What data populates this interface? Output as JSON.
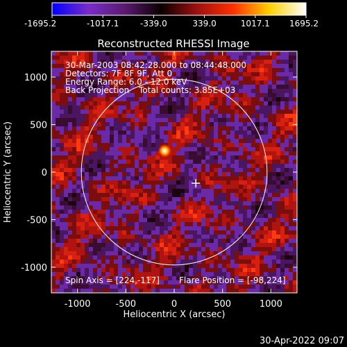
{
  "chart_data": {
    "type": "heatmap",
    "title": "Reconstructed RHESSI Image",
    "xlabel": "Heliocentric X (arcsec)",
    "ylabel": "Heliocentric Y (arcsec)",
    "xlim": [
      -1270,
      1270
    ],
    "ylim": [
      -1270,
      1270
    ],
    "xticks": [
      -1000,
      -500,
      0,
      500,
      1000
    ],
    "yticks": [
      1000,
      500,
      0,
      -500,
      -1000
    ],
    "colorbar": {
      "range": [
        -1695.2,
        1695.2
      ],
      "ticks": [
        "-1695.2",
        "-1017.1",
        "-339.0",
        "339.0",
        "1017.1",
        "1695.2"
      ],
      "colors": [
        "#0000ff",
        "#7a2cc9",
        "#5a1a70",
        "#0a0000",
        "#9e1010",
        "#ff3000",
        "#ffd000",
        "#ffffff"
      ]
    },
    "annotations": {
      "time_range": "30-Mar-2003 08:42:28.000 to 08:44:48.000",
      "detectors": "Detectors: 7F 8F 9F, Att 0",
      "energy": "Energy Range: 6.0 - 12.0 keV",
      "method": "Back Projection",
      "counts": "Total counts: 3.85E+03",
      "spin_axis": "Spin Axis = [224,-117]",
      "flare_position": "Flare Position = [-98,224]"
    },
    "solar_disk_radius_arcsec": 960,
    "solar_disk_center": [
      0,
      0
    ],
    "spin_axis_marker": [
      224,
      -117
    ],
    "bright_source": [
      -98,
      224
    ],
    "timestamp": "30-Apr-2022 09:07"
  }
}
